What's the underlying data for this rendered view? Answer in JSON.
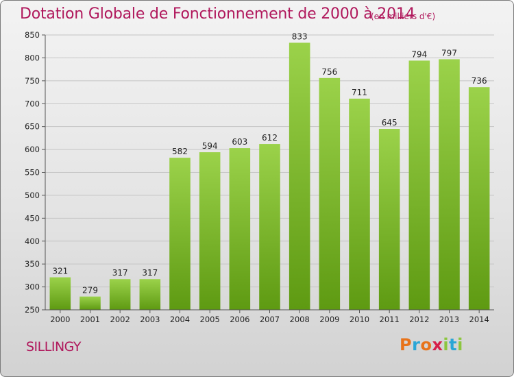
{
  "header": {
    "title": "Dotation Globale de Fonctionnement de 2000 à 2014",
    "unit_note": "(en milliers d'€)"
  },
  "footer": {
    "commune": "SILLINGY",
    "logo_text": "Proxiti",
    "logo_colors": [
      "#e8731a",
      "#2aa6d6",
      "#e8731a",
      "#d61f4a",
      "#8cc63f",
      "#2aa6d6",
      "#8cc63f"
    ]
  },
  "colors": {
    "title": "#b0185c",
    "bar_top": "#9bd24a",
    "bar_bottom": "#5e9a12"
  },
  "chart_data": {
    "type": "bar",
    "title": "Dotation Globale de Fonctionnement de 2000 à 2014",
    "subtitle": "(en milliers d'€)",
    "xlabel": "",
    "ylabel": "",
    "categories": [
      "2000",
      "2001",
      "2002",
      "2003",
      "2004",
      "2005",
      "2006",
      "2007",
      "2008",
      "2009",
      "2010",
      "2011",
      "2012",
      "2013",
      "2014"
    ],
    "values": [
      321,
      279,
      317,
      317,
      582,
      594,
      603,
      612,
      833,
      756,
      711,
      645,
      794,
      797,
      736
    ],
    "ylim": [
      250,
      850
    ],
    "yticks": [
      250,
      300,
      350,
      400,
      450,
      500,
      550,
      600,
      650,
      700,
      750,
      800,
      850
    ],
    "grid": true,
    "data_labels": true
  }
}
